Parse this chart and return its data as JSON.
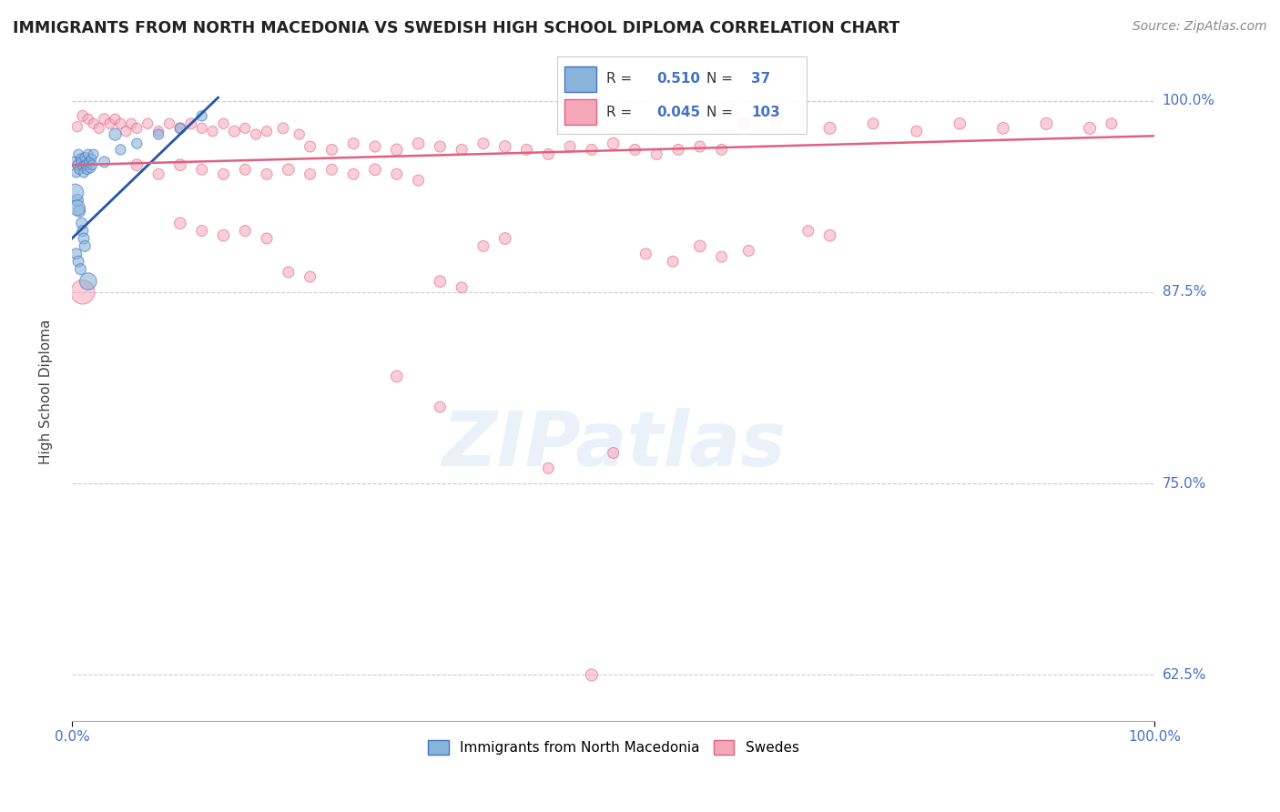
{
  "title": "IMMIGRANTS FROM NORTH MACEDONIA VS SWEDISH HIGH SCHOOL DIPLOMA CORRELATION CHART",
  "source": "Source: ZipAtlas.com",
  "ylabel": "High School Diploma",
  "xlim": [
    0.0,
    1.0
  ],
  "ylim": [
    0.595,
    1.025
  ],
  "ytick_vals": [
    0.625,
    0.75,
    0.875,
    1.0
  ],
  "ytick_labels": [
    "62.5%",
    "75.0%",
    "87.5%",
    "100.0%"
  ],
  "xtick_vals": [
    0.0,
    1.0
  ],
  "xtick_labels": [
    "0.0%",
    "100.0%"
  ],
  "blue_color": "#89b4d9",
  "blue_edge_color": "#4472c4",
  "pink_color": "#f4a7b9",
  "pink_edge_color": "#e06080",
  "blue_line_color": "#2255aa",
  "pink_line_color": "#e06080",
  "legend_blue_R": "0.510",
  "legend_blue_N": "37",
  "legend_pink_R": "0.045",
  "legend_pink_N": "103",
  "watermark": "ZIPatlas",
  "background_color": "#ffffff",
  "grid_color": "#cccccc",
  "title_color": "#222222",
  "source_color": "#888888",
  "tick_label_color": "#4472c4",
  "ylabel_color": "#444444"
}
